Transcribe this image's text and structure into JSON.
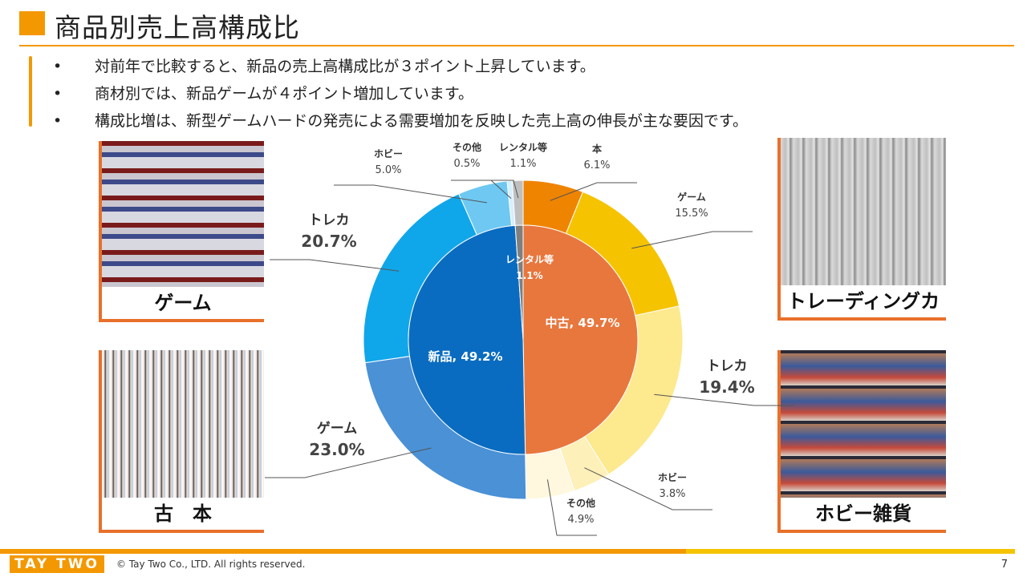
{
  "title": "商品別売上高構成比",
  "bullets": [
    "対前年で比較すると、新品の売上高構成比が３ポイント上昇しています。",
    "商材別では、新品ゲームが４ポイント増加しています。",
    "構成比増は、新型ゲームハードの発売による需要増加を反映した売上高の伸長が主な要因です。"
  ],
  "bullet_mark": "•",
  "photos": {
    "game": "ゲーム",
    "books": "古　本",
    "cards": "トレーディングカード",
    "hobby": "ホビー雑貨"
  },
  "footer": {
    "logo": "TAY TWO",
    "copyright": "© Tay Two Co., LTD. All rights reserved.",
    "page": "7"
  },
  "colors": {
    "accent": "#f39800",
    "accent2": "#f5c400",
    "photo_frame": "#e8702a"
  },
  "chart_data": {
    "type": "pie",
    "variant": "double-donut",
    "inner": [
      {
        "name": "中古",
        "value": 49.7,
        "label": "中古, 49.7%",
        "color": "#e8773e"
      },
      {
        "name": "新品",
        "value": 49.2,
        "label": "新品, 49.2%",
        "color": "#0a6cc0"
      },
      {
        "name": "レンタル等",
        "value": 1.1,
        "label": "レンタル等",
        "pct": "1.1%",
        "color": "#7f7f7f"
      }
    ],
    "outer": [
      {
        "name": "本",
        "value": 6.1,
        "pct": "6.1%",
        "group": "中古",
        "color": "#ef8400"
      },
      {
        "name": "ゲーム",
        "value": 15.5,
        "pct": "15.5%",
        "group": "中古",
        "color": "#f5c300"
      },
      {
        "name": "トレカ",
        "value": 19.4,
        "pct": "19.4%",
        "group": "中古",
        "color": "#fde98e"
      },
      {
        "name": "ホビー",
        "value": 3.8,
        "pct": "3.8%",
        "group": "中古",
        "color": "#fdf0b8"
      },
      {
        "name": "その他",
        "value": 4.9,
        "pct": "4.9%",
        "group": "中古",
        "color": "#fff7de"
      },
      {
        "name": "ゲーム",
        "value": 23.0,
        "pct": "23.0%",
        "group": "新品",
        "color": "#4a91d6"
      },
      {
        "name": "トレカ",
        "value": 20.7,
        "pct": "20.7%",
        "group": "新品",
        "color": "#10a6ea"
      },
      {
        "name": "ホビー",
        "value": 5.0,
        "pct": "5.0%",
        "group": "新品",
        "color": "#6ec8f2"
      },
      {
        "name": "その他",
        "value": 0.5,
        "pct": "0.5%",
        "group": "新品",
        "color": "#d6efff"
      },
      {
        "name": "レンタル等",
        "value": 1.1,
        "pct": "1.1%",
        "group": "レンタル等",
        "color": "#bfbfbf"
      }
    ]
  }
}
